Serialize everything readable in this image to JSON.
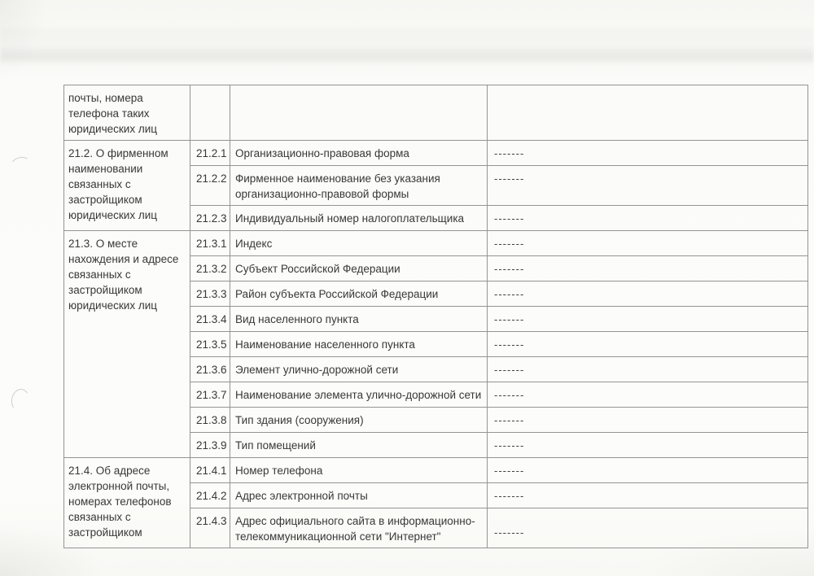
{
  "colors": {
    "text": "#383838",
    "table_line": "#949494",
    "paper": "#fbfbf9"
  },
  "table": {
    "sections": [
      {
        "id": "21.1-continuation",
        "label": "почты, номера\nтелефона таких\nюридических лиц",
        "rows": [
          {
            "num": "",
            "desc": "",
            "value": ""
          }
        ]
      },
      {
        "id": "21.2",
        "label": "21.2. О фирменном\nнаименовании\nсвязанных с\nзастройщиком\nюридических лиц",
        "rows": [
          {
            "num": "21.2.1",
            "desc": "Организационно-правовая форма",
            "value": "-------"
          },
          {
            "num": "21.2.2",
            "desc": "Фирменное наименование без указания\nорганизационно-правовой формы",
            "value": "-------"
          },
          {
            "num": "21.2.3",
            "desc": "Индивидуальный номер налогоплательщика",
            "value": "-------"
          }
        ]
      },
      {
        "id": "21.3",
        "label": "21.3. О месте\nнахождения и адресе\nсвязанных с\nзастройщиком\nюридических лиц",
        "rows": [
          {
            "num": "21.3.1",
            "desc": "Индекс",
            "value": "-------"
          },
          {
            "num": "21.3.2",
            "desc": "Субъект Российской Федерации",
            "value": "-------"
          },
          {
            "num": "21.3.3",
            "desc": "Район субъекта Российской Федерации",
            "value": "-------"
          },
          {
            "num": "21.3.4",
            "desc": "Вид населенного пункта",
            "value": "-------"
          },
          {
            "num": "21.3.5",
            "desc": "Наименование населенного пункта",
            "value": "-------"
          },
          {
            "num": "21.3.6",
            "desc": "Элемент улично-дорожной сети",
            "value": "-------"
          },
          {
            "num": "21.3.7",
            "desc": "Наименование элемента улично-дорожной сети",
            "value": "-------"
          },
          {
            "num": "21.3.8",
            "desc": "Тип здания (сооружения)",
            "value": "-------"
          },
          {
            "num": "21.3.9",
            "desc": "Тип помещений",
            "value": "-------"
          }
        ]
      },
      {
        "id": "21.4",
        "label": "21.4. Об адресе\nэлектронной почты,\nномерах телефонов\nсвязанных с\nзастройщиком",
        "rows": [
          {
            "num": "21.4.1",
            "desc": "Номер телефона",
            "value": "-------"
          },
          {
            "num": "21.4.2",
            "desc": "Адрес электронной почты",
            "value": "-------"
          },
          {
            "num": "21.4.3",
            "desc": "Адрес официального сайта в информационно-\nтелекоммуникационной сети \"Интернет\"",
            "value": "-------",
            "value_valign": "bottom"
          }
        ]
      }
    ]
  }
}
